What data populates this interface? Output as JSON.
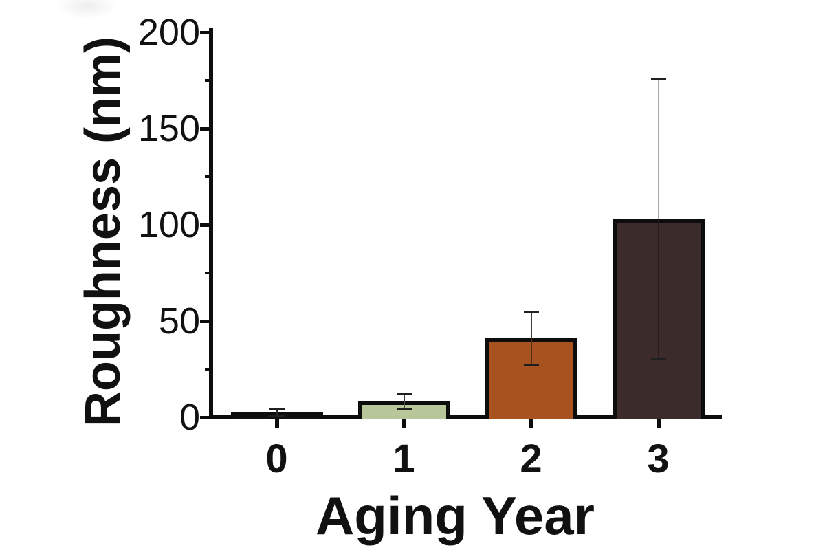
{
  "chart_data": {
    "type": "bar",
    "title": "",
    "xlabel": "Aging Year",
    "ylabel": "Roughness (nm)",
    "categories": [
      "0",
      "1",
      "2",
      "3"
    ],
    "series": [
      {
        "name": "Roughness",
        "values": [
          2.5,
          8.5,
          41,
          103
        ],
        "errors": [
          1.5,
          4,
          14,
          72.5
        ]
      }
    ],
    "ylim": [
      0,
      200
    ],
    "y_major_ticks": [
      0,
      50,
      100,
      150,
      200
    ],
    "y_minor_ticks": [
      25,
      75,
      125,
      175
    ],
    "grid": false,
    "legend": null,
    "bar_fill_colors": [
      "#101010",
      "#b7c79a",
      "#a8521f",
      "#3b2b2b"
    ],
    "bar_edge_color": "#0d0d0d",
    "error_cap_color": "#1f1f1f",
    "error_line_outer_colors": [
      "#2b2b2b",
      "#3a3a3a",
      "#3c3c3c",
      "#a9a9a9"
    ],
    "error_line_inner_colors": [
      "#2b2b2b",
      "#4a5434",
      "#55300e",
      "#251b1b"
    ],
    "axis_color": "#0d0d0d",
    "text_color": "#111111",
    "background_color": "#ffffff"
  }
}
